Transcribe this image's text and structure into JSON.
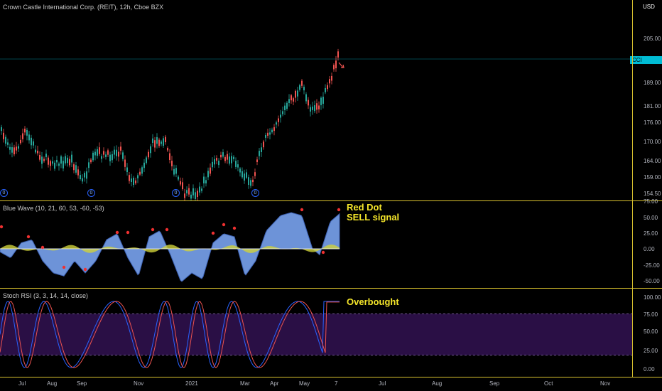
{
  "price_pane": {
    "title": "Crown Castle International Corp. (REIT), 12h, Cboe BZX",
    "currency": "USD",
    "ticker_badge": "CCI",
    "last_price": "197.08",
    "y_ticks": [
      "205.00",
      "197.08",
      "189.00",
      "181.00",
      "176.00",
      "170.00",
      "164.00",
      "159.00",
      "154.50"
    ],
    "markers": [
      "0",
      "0",
      "0",
      "0"
    ]
  },
  "blue_wave": {
    "title": "Blue Wave (10, 21, 60, 53, -60, -53)",
    "y_ticks": [
      "75.00",
      "50.00",
      "25.00",
      "0.00",
      "-25.00",
      "-50.00"
    ],
    "annotation_line1": "Red Dot",
    "annotation_line2": "SELL signal"
  },
  "stoch_rsi": {
    "title": "Stoch RSI (3, 3, 14, 14, close)",
    "y_ticks": [
      "100.00",
      "75.00",
      "50.00",
      "25.00",
      "0.00"
    ],
    "annotation": "Overbought",
    "overbought_level": 80,
    "oversold_level": 20
  },
  "x_axis": {
    "labels": [
      "Jul",
      "Aug",
      "Sep",
      "Nov",
      "2021",
      "Mar",
      "Apr",
      "May",
      "7",
      "Jul",
      "Aug",
      "Sep",
      "Oct",
      "Nov"
    ]
  },
  "colors": {
    "background": "#000000",
    "separator": "#d9c22e",
    "candle_up": "#26a69a",
    "candle_down": "#ef5350",
    "wave_fill": "#6d93d8",
    "wave_yellow": "#cfd23a",
    "stoch_k": "#2962ff",
    "stoch_d": "#ef5350",
    "band_fill": "#2a0f45",
    "annotation": "#f5e62a",
    "badge": "#00bcd4"
  }
}
